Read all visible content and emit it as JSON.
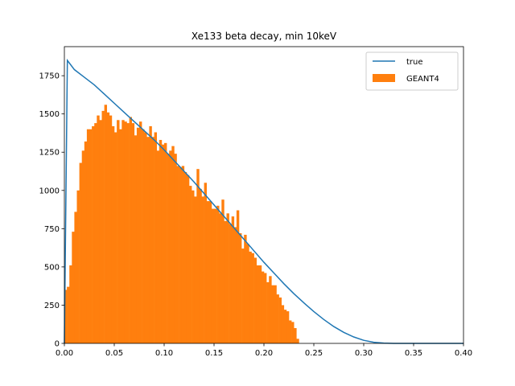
{
  "chart_data": {
    "type": "histogram_with_line",
    "title": "Xe133 beta decay, min 10keV",
    "xlabel": "",
    "ylabel": "",
    "xlim": [
      0.0,
      0.4
    ],
    "ylim": [
      0,
      1940
    ],
    "xticks": [
      "0.00",
      "0.05",
      "0.10",
      "0.15",
      "0.20",
      "0.25",
      "0.30",
      "0.35",
      "0.40"
    ],
    "yticks": [
      "0",
      "250",
      "500",
      "750",
      "1000",
      "1250",
      "1500",
      "1750"
    ],
    "grid": false,
    "legend_position": "top-right",
    "colors": {
      "true": "#1f77b4",
      "GEANT4": "#ff7f0e"
    },
    "series": [
      {
        "name": "true",
        "type": "line",
        "x": [
          0.0,
          0.003,
          0.01,
          0.02,
          0.03,
          0.04,
          0.05,
          0.06,
          0.07,
          0.08,
          0.09,
          0.1,
          0.11,
          0.12,
          0.13,
          0.14,
          0.15,
          0.16,
          0.17,
          0.18,
          0.19,
          0.2,
          0.21,
          0.22,
          0.23,
          0.24,
          0.25,
          0.26,
          0.27,
          0.28,
          0.29,
          0.3,
          0.31,
          0.32,
          0.33,
          0.34,
          0.35,
          0.4
        ],
        "y": [
          0,
          1850,
          1790,
          1740,
          1690,
          1630,
          1570,
          1510,
          1450,
          1390,
          1330,
          1265,
          1195,
          1125,
          1055,
          980,
          905,
          830,
          755,
          680,
          605,
          530,
          460,
          390,
          325,
          265,
          208,
          156,
          110,
          72,
          42,
          20,
          7,
          2,
          0,
          0,
          0,
          0
        ]
      },
      {
        "name": "GEANT4",
        "type": "histogram",
        "bin_width": 0.0025,
        "bin_start": 0.0,
        "values": [
          350,
          370,
          510,
          730,
          860,
          1000,
          1180,
          1260,
          1320,
          1400,
          1400,
          1420,
          1440,
          1490,
          1460,
          1520,
          1560,
          1510,
          1490,
          1420,
          1380,
          1460,
          1400,
          1460,
          1450,
          1440,
          1480,
          1440,
          1360,
          1410,
          1450,
          1400,
          1380,
          1350,
          1420,
          1350,
          1380,
          1260,
          1330,
          1300,
          1310,
          1240,
          1260,
          1290,
          1240,
          1160,
          1150,
          1160,
          1120,
          1100,
          1030,
          1000,
          960,
          1140,
          1010,
          960,
          1050,
          930,
          930,
          880,
          880,
          900,
          850,
          940,
          800,
          850,
          780,
          830,
          760,
          870,
          720,
          620,
          710,
          650,
          600,
          590,
          560,
          510,
          510,
          470,
          460,
          400,
          440,
          380,
          380,
          320,
          300,
          250,
          220,
          210,
          150,
          140,
          100,
          30,
          0,
          0,
          0,
          0,
          0,
          0,
          0,
          0,
          0,
          0,
          0,
          0,
          0,
          0,
          0,
          0,
          0,
          0,
          0,
          0,
          0,
          0,
          0,
          0,
          0,
          0,
          0,
          0,
          0,
          0,
          0,
          0,
          0,
          0,
          0,
          0,
          0,
          0,
          0,
          0,
          0,
          0,
          0,
          0,
          0,
          0,
          0,
          0,
          0,
          0,
          0,
          0,
          0,
          0,
          0,
          0,
          0,
          0,
          0,
          0,
          0,
          0,
          0,
          0,
          0,
          0
        ]
      }
    ]
  }
}
